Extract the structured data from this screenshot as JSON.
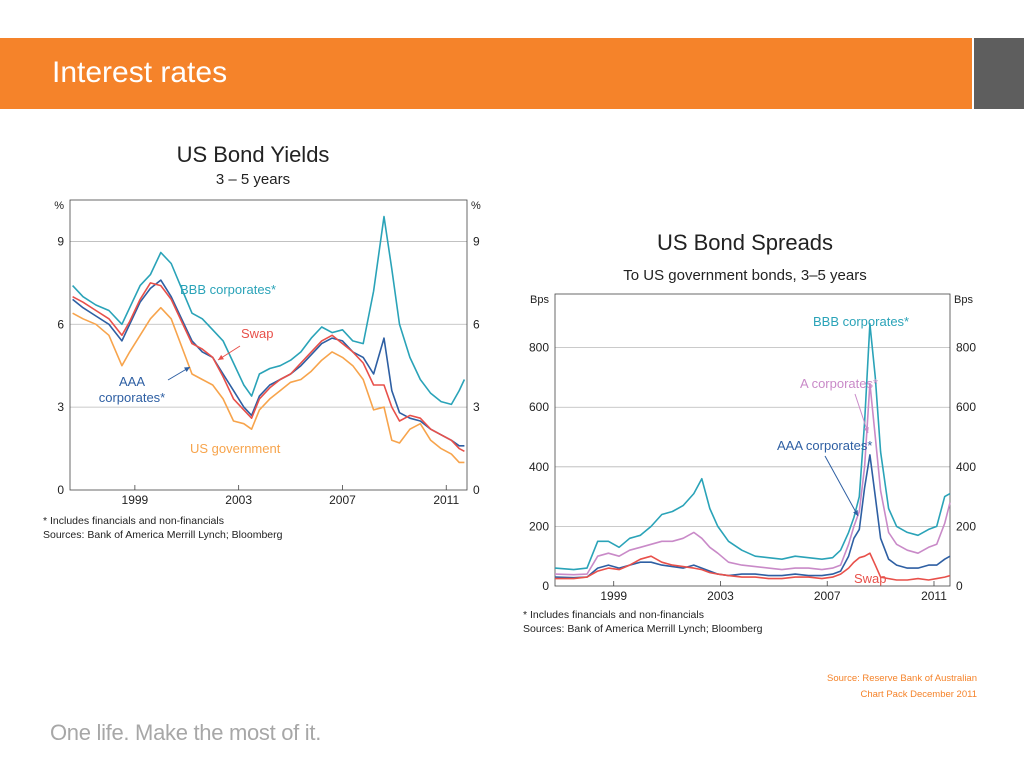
{
  "slide": {
    "title": "Interest rates",
    "source_line1": "Source: Reserve Bank of Australian",
    "source_line2": "Chart Pack December 2011",
    "tagline": "One life. Make the most of it."
  },
  "colors": {
    "header": "#f5832a",
    "header_side": "#5e5e5e",
    "bbb": "#2aa3b8",
    "aaa": "#2e5fa3",
    "swap": "#e8504a",
    "gov": "#f7a44c",
    "a": "#c98ac8"
  },
  "chart_data": [
    {
      "type": "line",
      "title": "US Bond Yields",
      "subtitle": "3 – 5 years",
      "unit_left": "%",
      "unit_right": "%",
      "xlim": [
        1996.5,
        2011.8
      ],
      "ylim": [
        0,
        10.5
      ],
      "x_ticks": [
        1999,
        2003,
        2007,
        2011
      ],
      "x_tick_labels": [
        "1999",
        "2003",
        "2007",
        "2011"
      ],
      "y_ticks": [
        0,
        3,
        6,
        9
      ],
      "y_tick_labels": [
        "0",
        "3",
        "6",
        "9"
      ],
      "grid": true,
      "series": [
        {
          "name": "BBB corporates*",
          "color": "#2aa3b8",
          "x": [
            1996.6,
            1997.0,
            1997.5,
            1998.0,
            1998.5,
            1998.8,
            1999.2,
            1999.6,
            2000.0,
            2000.4,
            2000.8,
            2001.2,
            2001.6,
            2002.0,
            2002.4,
            2002.8,
            2003.2,
            2003.5,
            2003.8,
            2004.2,
            2004.6,
            2005.0,
            2005.4,
            2005.8,
            2006.2,
            2006.6,
            2007.0,
            2007.4,
            2007.8,
            2008.2,
            2008.6,
            2008.9,
            2009.2,
            2009.6,
            2010.0,
            2010.4,
            2010.8,
            2011.2,
            2011.5,
            2011.7
          ],
          "y": [
            7.4,
            7.0,
            6.7,
            6.5,
            6.0,
            6.6,
            7.4,
            7.8,
            8.6,
            8.2,
            7.3,
            6.4,
            6.2,
            5.8,
            5.4,
            4.6,
            3.8,
            3.4,
            4.2,
            4.4,
            4.5,
            4.7,
            5.0,
            5.5,
            5.9,
            5.7,
            5.8,
            5.4,
            5.3,
            7.2,
            9.9,
            8.0,
            6.0,
            4.8,
            4.0,
            3.5,
            3.2,
            3.1,
            3.6,
            4.0
          ]
        },
        {
          "name": "AAA corporates*",
          "color": "#2e5fa3",
          "x": [
            1996.6,
            1997.0,
            1997.5,
            1998.0,
            1998.5,
            1998.8,
            1999.2,
            1999.6,
            2000.0,
            2000.4,
            2000.8,
            2001.2,
            2001.6,
            2002.0,
            2002.4,
            2002.8,
            2003.2,
            2003.5,
            2003.8,
            2004.2,
            2004.6,
            2005.0,
            2005.4,
            2005.8,
            2006.2,
            2006.6,
            2007.0,
            2007.4,
            2007.8,
            2008.2,
            2008.6,
            2008.9,
            2009.2,
            2009.6,
            2010.0,
            2010.4,
            2010.8,
            2011.2,
            2011.5,
            2011.7
          ],
          "y": [
            6.9,
            6.6,
            6.3,
            6.0,
            5.4,
            6.0,
            6.8,
            7.3,
            7.6,
            7.0,
            6.2,
            5.4,
            5.0,
            4.8,
            4.2,
            3.6,
            3.0,
            2.7,
            3.4,
            3.8,
            4.0,
            4.2,
            4.5,
            4.9,
            5.3,
            5.5,
            5.4,
            5.0,
            4.8,
            4.2,
            5.5,
            3.6,
            2.8,
            2.6,
            2.5,
            2.2,
            2.0,
            1.8,
            1.6,
            1.6
          ]
        },
        {
          "name": "Swap",
          "color": "#e8504a",
          "x": [
            1996.6,
            1997.0,
            1997.5,
            1998.0,
            1998.5,
            1998.8,
            1999.2,
            1999.6,
            2000.0,
            2000.4,
            2000.8,
            2001.2,
            2001.6,
            2002.0,
            2002.4,
            2002.8,
            2003.2,
            2003.5,
            2003.8,
            2004.2,
            2004.6,
            2005.0,
            2005.4,
            2005.8,
            2006.2,
            2006.6,
            2007.0,
            2007.4,
            2007.8,
            2008.2,
            2008.6,
            2008.9,
            2009.2,
            2009.6,
            2010.0,
            2010.4,
            2010.8,
            2011.2,
            2011.5,
            2011.7
          ],
          "y": [
            7.0,
            6.8,
            6.5,
            6.2,
            5.6,
            6.1,
            6.9,
            7.5,
            7.4,
            6.9,
            6.1,
            5.3,
            5.1,
            4.8,
            4.1,
            3.3,
            2.9,
            2.6,
            3.3,
            3.7,
            4.0,
            4.2,
            4.6,
            5.0,
            5.4,
            5.6,
            5.3,
            5.0,
            4.6,
            3.8,
            3.8,
            3.0,
            2.5,
            2.7,
            2.6,
            2.2,
            2.0,
            1.8,
            1.5,
            1.4
          ]
        },
        {
          "name": "US government",
          "color": "#f7a44c",
          "x": [
            1996.6,
            1997.0,
            1997.5,
            1998.0,
            1998.5,
            1998.8,
            1999.2,
            1999.6,
            2000.0,
            2000.4,
            2000.8,
            2001.2,
            2001.6,
            2002.0,
            2002.4,
            2002.8,
            2003.2,
            2003.5,
            2003.8,
            2004.2,
            2004.6,
            2005.0,
            2005.4,
            2005.8,
            2006.2,
            2006.6,
            2007.0,
            2007.4,
            2007.8,
            2008.2,
            2008.6,
            2008.9,
            2009.2,
            2009.6,
            2010.0,
            2010.4,
            2010.8,
            2011.2,
            2011.5,
            2011.7
          ],
          "y": [
            6.4,
            6.2,
            6.0,
            5.6,
            4.5,
            5.0,
            5.6,
            6.2,
            6.6,
            6.2,
            5.2,
            4.2,
            4.0,
            3.8,
            3.3,
            2.5,
            2.4,
            2.2,
            2.9,
            3.3,
            3.6,
            3.9,
            4.0,
            4.3,
            4.7,
            5.0,
            4.8,
            4.5,
            4.0,
            2.9,
            3.0,
            1.8,
            1.7,
            2.2,
            2.4,
            1.8,
            1.5,
            1.3,
            1.0,
            1.0
          ]
        }
      ],
      "annotations": [
        "BBB corporates*",
        "Swap",
        "AAA corporates*",
        "US government"
      ],
      "footnote": "*     Includes financials and non-financials",
      "sources": "Sources: Bank of America Merrill Lynch; Bloomberg"
    },
    {
      "type": "line",
      "title": "US Bond Spreads",
      "subtitle": "To US government bonds, 3–5 years",
      "unit_left": "Bps",
      "unit_right": "Bps",
      "xlim": [
        1996.8,
        2011.6
      ],
      "ylim": [
        0,
        980
      ],
      "x_ticks": [
        1999,
        2003,
        2007,
        2011
      ],
      "x_tick_labels": [
        "1999",
        "2003",
        "2007",
        "2011"
      ],
      "y_ticks": [
        0,
        200,
        400,
        600,
        800
      ],
      "y_tick_labels": [
        "0",
        "200",
        "400",
        "600",
        "800"
      ],
      "grid": true,
      "series": [
        {
          "name": "BBB corporates*",
          "color": "#2aa3b8",
          "x": [
            1996.8,
            1997.5,
            1998.0,
            1998.4,
            1998.8,
            1999.2,
            1999.6,
            2000.0,
            2000.4,
            2000.8,
            2001.2,
            2001.6,
            2002.0,
            2002.3,
            2002.6,
            2002.9,
            2003.3,
            2003.8,
            2004.3,
            2004.8,
            2005.3,
            2005.8,
            2006.3,
            2006.8,
            2007.2,
            2007.5,
            2007.8,
            2008.0,
            2008.2,
            2008.4,
            2008.6,
            2008.8,
            2009.0,
            2009.3,
            2009.6,
            2010.0,
            2010.4,
            2010.8,
            2011.1,
            2011.4,
            2011.6
          ],
          "y": [
            60,
            55,
            60,
            150,
            150,
            130,
            160,
            170,
            200,
            240,
            250,
            270,
            310,
            360,
            260,
            200,
            150,
            120,
            100,
            95,
            90,
            100,
            95,
            90,
            95,
            120,
            180,
            230,
            300,
            550,
            880,
            700,
            450,
            260,
            200,
            180,
            170,
            190,
            200,
            300,
            310
          ]
        },
        {
          "name": "A corporates*",
          "color": "#c98ac8",
          "x": [
            1996.8,
            1997.5,
            1998.0,
            1998.4,
            1998.8,
            1999.2,
            1999.6,
            2000.0,
            2000.4,
            2000.8,
            2001.2,
            2001.6,
            2002.0,
            2002.3,
            2002.6,
            2002.9,
            2003.3,
            2003.8,
            2004.3,
            2004.8,
            2005.3,
            2005.8,
            2006.3,
            2006.8,
            2007.2,
            2007.5,
            2007.8,
            2008.0,
            2008.2,
            2008.4,
            2008.6,
            2008.8,
            2009.0,
            2009.3,
            2009.6,
            2010.0,
            2010.4,
            2010.8,
            2011.1,
            2011.4,
            2011.6
          ],
          "y": [
            40,
            38,
            40,
            100,
            110,
            100,
            120,
            130,
            140,
            150,
            150,
            160,
            180,
            160,
            130,
            110,
            80,
            70,
            65,
            60,
            55,
            60,
            60,
            55,
            60,
            70,
            140,
            200,
            250,
            400,
            680,
            500,
            320,
            180,
            140,
            120,
            110,
            130,
            140,
            210,
            280
          ]
        },
        {
          "name": "AAA corporates*",
          "color": "#2e5fa3",
          "x": [
            1996.8,
            1997.5,
            1998.0,
            1998.4,
            1998.8,
            1999.2,
            1999.6,
            2000.0,
            2000.4,
            2000.8,
            2001.2,
            2001.6,
            2002.0,
            2002.3,
            2002.6,
            2002.9,
            2003.3,
            2003.8,
            2004.3,
            2004.8,
            2005.3,
            2005.8,
            2006.3,
            2006.8,
            2007.2,
            2007.5,
            2007.8,
            2008.0,
            2008.2,
            2008.4,
            2008.6,
            2008.8,
            2009.0,
            2009.3,
            2009.6,
            2010.0,
            2010.4,
            2010.8,
            2011.1,
            2011.4,
            2011.6
          ],
          "y": [
            30,
            28,
            30,
            60,
            70,
            60,
            70,
            80,
            80,
            70,
            65,
            60,
            70,
            60,
            50,
            40,
            35,
            40,
            40,
            35,
            35,
            40,
            35,
            35,
            40,
            50,
            100,
            160,
            190,
            330,
            440,
            300,
            160,
            90,
            70,
            60,
            60,
            70,
            70,
            90,
            100
          ]
        },
        {
          "name": "Swap",
          "color": "#e8504a",
          "x": [
            1996.8,
            1997.5,
            1998.0,
            1998.4,
            1998.8,
            1999.2,
            1999.6,
            2000.0,
            2000.4,
            2000.8,
            2001.2,
            2001.6,
            2002.0,
            2002.3,
            2002.6,
            2002.9,
            2003.3,
            2003.8,
            2004.3,
            2004.8,
            2005.3,
            2005.8,
            2006.3,
            2006.8,
            2007.2,
            2007.5,
            2007.8,
            2008.0,
            2008.2,
            2008.4,
            2008.6,
            2008.8,
            2009.0,
            2009.3,
            2009.6,
            2010.0,
            2010.4,
            2010.8,
            2011.1,
            2011.4,
            2011.6
          ],
          "y": [
            25,
            25,
            30,
            50,
            60,
            55,
            70,
            90,
            100,
            80,
            70,
            65,
            60,
            55,
            45,
            40,
            35,
            30,
            30,
            25,
            25,
            30,
            30,
            25,
            30,
            40,
            60,
            80,
            95,
            100,
            110,
            70,
            30,
            25,
            20,
            20,
            25,
            20,
            25,
            30,
            35
          ]
        }
      ],
      "annotations": [
        "BBB corporates*",
        "A corporates*",
        "AAA corporates*",
        "Swap"
      ],
      "footnote": "*     Includes financials and non-financials",
      "sources": "Sources: Bank of America Merrill Lynch; Bloomberg"
    }
  ]
}
